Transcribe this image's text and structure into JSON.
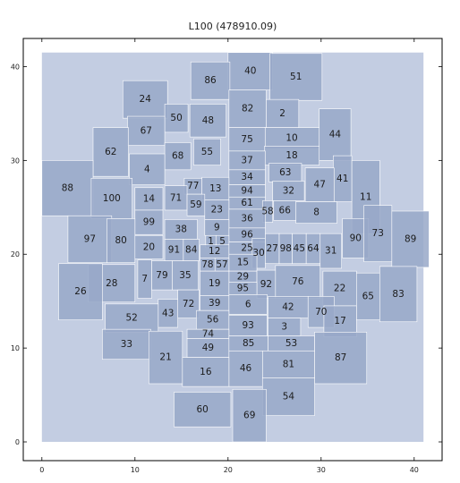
{
  "chart_data": {
    "type": "treemap",
    "title": "L100   (478910.09)",
    "xlim": [
      -2,
      43
    ],
    "ylim": [
      -2,
      43
    ],
    "xticks": [
      0,
      10,
      20,
      30,
      40
    ],
    "yticks": [
      0,
      10,
      20,
      30,
      40
    ],
    "background": {
      "x": [
        0,
        41
      ],
      "y": [
        0,
        41.5
      ]
    },
    "colors": {
      "box": "#98a8c8",
      "background": "#c3cde2"
    },
    "boxes": [
      {
        "label": "40",
        "x": 20.0,
        "y": 37.5,
        "w": 4.8,
        "h": 4.0
      },
      {
        "label": "51",
        "x": 24.5,
        "y": 36.4,
        "w": 5.6,
        "h": 5.0
      },
      {
        "label": "86",
        "x": 16.0,
        "y": 36.5,
        "w": 4.2,
        "h": 4.0
      },
      {
        "label": "24",
        "x": 8.7,
        "y": 34.5,
        "w": 4.8,
        "h": 4.0
      },
      {
        "label": "82",
        "x": 20.1,
        "y": 33.5,
        "w": 4.0,
        "h": 4.0
      },
      {
        "label": "2",
        "x": 24.1,
        "y": 33.5,
        "w": 3.5,
        "h": 3.0
      },
      {
        "label": "44",
        "x": 29.8,
        "y": 30.0,
        "w": 3.4,
        "h": 5.5
      },
      {
        "label": "50",
        "x": 13.2,
        "y": 33.0,
        "w": 2.5,
        "h": 3.0
      },
      {
        "label": "48",
        "x": 15.9,
        "y": 32.5,
        "w": 3.9,
        "h": 3.5
      },
      {
        "label": "67",
        "x": 9.2,
        "y": 31.6,
        "w": 4.0,
        "h": 3.1
      },
      {
        "label": "10",
        "x": 23.9,
        "y": 31.2,
        "w": 5.9,
        "h": 2.3
      },
      {
        "label": "75",
        "x": 20.1,
        "y": 31.0,
        "w": 3.9,
        "h": 2.5
      },
      {
        "label": "62",
        "x": 5.5,
        "y": 28.3,
        "w": 3.8,
        "h": 5.2
      },
      {
        "label": "18",
        "x": 23.9,
        "y": 29.5,
        "w": 5.9,
        "h": 2.0
      },
      {
        "label": "55",
        "x": 16.3,
        "y": 29.5,
        "w": 2.9,
        "h": 2.8
      },
      {
        "label": "68",
        "x": 13.2,
        "y": 29.0,
        "w": 2.8,
        "h": 2.9
      },
      {
        "label": "37",
        "x": 20.1,
        "y": 29.0,
        "w": 3.9,
        "h": 2.0
      },
      {
        "label": "4",
        "x": 9.4,
        "y": 27.4,
        "w": 3.8,
        "h": 3.3
      },
      {
        "label": "63",
        "x": 24.4,
        "y": 27.7,
        "w": 3.5,
        "h": 2.0
      },
      {
        "label": "41",
        "x": 31.3,
        "y": 25.6,
        "w": 2.0,
        "h": 4.9
      },
      {
        "label": "34",
        "x": 20.1,
        "y": 27.4,
        "w": 3.9,
        "h": 1.6
      },
      {
        "label": "47",
        "x": 28.3,
        "y": 25.6,
        "w": 3.1,
        "h": 3.6
      },
      {
        "label": "88",
        "x": 0.0,
        "y": 24.1,
        "w": 5.5,
        "h": 5.9
      },
      {
        "label": "77",
        "x": 15.3,
        "y": 26.4,
        "w": 1.9,
        "h": 1.7
      },
      {
        "label": "13",
        "x": 17.2,
        "y": 25.8,
        "w": 2.9,
        "h": 2.4
      },
      {
        "label": "11",
        "x": 33.3,
        "y": 22.2,
        "w": 3.0,
        "h": 7.8
      },
      {
        "label": "32",
        "x": 24.8,
        "y": 25.7,
        "w": 3.4,
        "h": 2.1
      },
      {
        "label": "94",
        "x": 20.1,
        "y": 26.1,
        "w": 3.9,
        "h": 1.3
      },
      {
        "label": "100",
        "x": 5.3,
        "y": 23.8,
        "w": 4.4,
        "h": 4.3
      },
      {
        "label": "14",
        "x": 10.0,
        "y": 24.7,
        "w": 3.0,
        "h": 2.4
      },
      {
        "label": "71",
        "x": 13.2,
        "y": 24.7,
        "w": 2.4,
        "h": 2.6
      },
      {
        "label": "59",
        "x": 15.6,
        "y": 24.1,
        "w": 1.9,
        "h": 2.3
      },
      {
        "label": "61",
        "x": 20.1,
        "y": 24.8,
        "w": 3.9,
        "h": 1.3
      },
      {
        "label": "23",
        "x": 17.5,
        "y": 23.7,
        "w": 2.6,
        "h": 2.1
      },
      {
        "label": "66",
        "x": 24.9,
        "y": 23.6,
        "w": 2.4,
        "h": 2.1
      },
      {
        "label": "58",
        "x": 23.7,
        "y": 23.4,
        "w": 1.1,
        "h": 2.3
      },
      {
        "label": "8",
        "x": 27.3,
        "y": 23.3,
        "w": 4.4,
        "h": 2.3
      },
      {
        "label": "99",
        "x": 10.0,
        "y": 22.1,
        "w": 3.0,
        "h": 2.6
      },
      {
        "label": "36",
        "x": 20.1,
        "y": 22.8,
        "w": 3.9,
        "h": 2.0
      },
      {
        "label": "9",
        "x": 17.5,
        "y": 22.0,
        "w": 2.6,
        "h": 1.7
      },
      {
        "label": "38",
        "x": 13.2,
        "y": 21.6,
        "w": 3.5,
        "h": 2.1
      },
      {
        "label": "97",
        "x": 2.8,
        "y": 19.1,
        "w": 4.7,
        "h": 5.0
      },
      {
        "label": "80",
        "x": 7.0,
        "y": 19.1,
        "w": 3.0,
        "h": 4.7
      },
      {
        "label": "90",
        "x": 32.3,
        "y": 19.6,
        "w": 2.8,
        "h": 4.2
      },
      {
        "label": "73",
        "x": 34.6,
        "y": 19.2,
        "w": 3.0,
        "h": 6.0
      },
      {
        "label": "89",
        "x": 37.6,
        "y": 18.6,
        "w": 4.0,
        "h": 6.0
      },
      {
        "label": "96",
        "x": 20.1,
        "y": 21.3,
        "w": 3.9,
        "h": 1.5
      },
      {
        "label": "1",
        "x": 17.6,
        "y": 20.7,
        "w": 1.1,
        "h": 1.3
      },
      {
        "label": "5",
        "x": 18.7,
        "y": 20.7,
        "w": 1.4,
        "h": 1.3
      },
      {
        "label": "20",
        "x": 10.0,
        "y": 19.5,
        "w": 3.0,
        "h": 2.5
      },
      {
        "label": "91",
        "x": 13.2,
        "y": 19.3,
        "w": 2.0,
        "h": 2.3
      },
      {
        "label": "84",
        "x": 15.2,
        "y": 19.3,
        "w": 1.7,
        "h": 2.3
      },
      {
        "label": "12",
        "x": 17.0,
        "y": 19.6,
        "w": 3.1,
        "h": 1.4
      },
      {
        "label": "25",
        "x": 20.1,
        "y": 20.0,
        "w": 3.9,
        "h": 1.3
      },
      {
        "label": "30",
        "x": 22.6,
        "y": 18.5,
        "w": 1.4,
        "h": 3.2
      },
      {
        "label": "27",
        "x": 24.0,
        "y": 19.0,
        "w": 1.5,
        "h": 3.2
      },
      {
        "label": "98",
        "x": 25.5,
        "y": 19.0,
        "w": 1.4,
        "h": 3.2
      },
      {
        "label": "45",
        "x": 26.9,
        "y": 19.0,
        "w": 1.5,
        "h": 3.2
      },
      {
        "label": "64",
        "x": 28.4,
        "y": 19.0,
        "w": 1.5,
        "h": 3.2
      },
      {
        "label": "31",
        "x": 29.9,
        "y": 18.5,
        "w": 2.3,
        "h": 3.7
      },
      {
        "label": "15",
        "x": 20.1,
        "y": 18.2,
        "w": 3.0,
        "h": 1.8
      },
      {
        "label": "78",
        "x": 17.0,
        "y": 18.2,
        "w": 1.6,
        "h": 1.4
      },
      {
        "label": "57",
        "x": 18.6,
        "y": 18.2,
        "w": 1.5,
        "h": 1.4
      },
      {
        "label": "7",
        "x": 10.3,
        "y": 15.3,
        "w": 1.5,
        "h": 4.1
      },
      {
        "label": "79",
        "x": 11.8,
        "y": 16.2,
        "w": 2.2,
        "h": 3.1
      },
      {
        "label": "35",
        "x": 14.0,
        "y": 16.2,
        "w": 2.8,
        "h": 3.1
      },
      {
        "label": "29",
        "x": 20.1,
        "y": 17.0,
        "w": 3.0,
        "h": 1.2
      },
      {
        "label": "19",
        "x": 17.0,
        "y": 15.6,
        "w": 3.1,
        "h": 2.6
      },
      {
        "label": "92",
        "x": 23.1,
        "y": 15.3,
        "w": 2.0,
        "h": 3.0
      },
      {
        "label": "76",
        "x": 25.1,
        "y": 15.3,
        "w": 4.8,
        "h": 3.5
      },
      {
        "label": "28",
        "x": 5.0,
        "y": 14.9,
        "w": 5.0,
        "h": 4.0
      },
      {
        "label": "26",
        "x": 1.8,
        "y": 13.0,
        "w": 4.7,
        "h": 6.0
      },
      {
        "label": "95",
        "x": 20.1,
        "y": 15.7,
        "w": 3.0,
        "h": 1.3
      },
      {
        "label": "22",
        "x": 30.2,
        "y": 14.5,
        "w": 3.6,
        "h": 3.7
      },
      {
        "label": "39",
        "x": 17.0,
        "y": 14.0,
        "w": 3.1,
        "h": 1.6
      },
      {
        "label": "65",
        "x": 33.8,
        "y": 13.0,
        "w": 2.5,
        "h": 5.0
      },
      {
        "label": "83",
        "x": 36.3,
        "y": 12.8,
        "w": 4.0,
        "h": 5.9
      },
      {
        "label": "72",
        "x": 14.6,
        "y": 13.2,
        "w": 2.3,
        "h": 3.0
      },
      {
        "label": "6",
        "x": 20.1,
        "y": 13.6,
        "w": 4.1,
        "h": 2.1
      },
      {
        "label": "42",
        "x": 24.3,
        "y": 13.2,
        "w": 4.3,
        "h": 2.3
      },
      {
        "label": "70",
        "x": 28.6,
        "y": 12.2,
        "w": 2.8,
        "h": 3.3
      },
      {
        "label": "43",
        "x": 12.5,
        "y": 12.2,
        "w": 2.1,
        "h": 3.0
      },
      {
        "label": "56",
        "x": 16.6,
        "y": 12.0,
        "w": 3.5,
        "h": 2.0
      },
      {
        "label": "52",
        "x": 6.8,
        "y": 11.7,
        "w": 5.7,
        "h": 3.0
      },
      {
        "label": "93",
        "x": 20.1,
        "y": 11.3,
        "w": 4.1,
        "h": 2.2
      },
      {
        "label": "3",
        "x": 24.3,
        "y": 11.3,
        "w": 3.5,
        "h": 1.9
      },
      {
        "label": "17",
        "x": 30.3,
        "y": 11.2,
        "w": 3.5,
        "h": 3.3
      },
      {
        "label": "74",
        "x": 15.6,
        "y": 11.0,
        "w": 4.5,
        "h": 1.0
      },
      {
        "label": "33",
        "x": 6.5,
        "y": 8.8,
        "w": 5.2,
        "h": 3.2
      },
      {
        "label": "49",
        "x": 15.6,
        "y": 9.0,
        "w": 4.5,
        "h": 2.0
      },
      {
        "label": "85",
        "x": 20.1,
        "y": 9.7,
        "w": 4.2,
        "h": 1.6
      },
      {
        "label": "53",
        "x": 24.3,
        "y": 9.7,
        "w": 5.0,
        "h": 1.6
      },
      {
        "label": "21",
        "x": 11.5,
        "y": 6.2,
        "w": 3.6,
        "h": 5.6
      },
      {
        "label": "87",
        "x": 29.3,
        "y": 6.2,
        "w": 5.6,
        "h": 5.5
      },
      {
        "label": "81",
        "x": 23.7,
        "y": 6.8,
        "w": 5.6,
        "h": 2.9
      },
      {
        "label": "46",
        "x": 20.1,
        "y": 5.9,
        "w": 3.6,
        "h": 3.8
      },
      {
        "label": "16",
        "x": 15.1,
        "y": 5.9,
        "w": 5.0,
        "h": 3.1
      },
      {
        "label": "54",
        "x": 23.7,
        "y": 2.8,
        "w": 5.6,
        "h": 4.0
      },
      {
        "label": "60",
        "x": 14.2,
        "y": 1.6,
        "w": 6.1,
        "h": 3.7
      },
      {
        "label": "69",
        "x": 20.5,
        "y": 0.0,
        "w": 3.6,
        "h": 5.6
      }
    ]
  }
}
